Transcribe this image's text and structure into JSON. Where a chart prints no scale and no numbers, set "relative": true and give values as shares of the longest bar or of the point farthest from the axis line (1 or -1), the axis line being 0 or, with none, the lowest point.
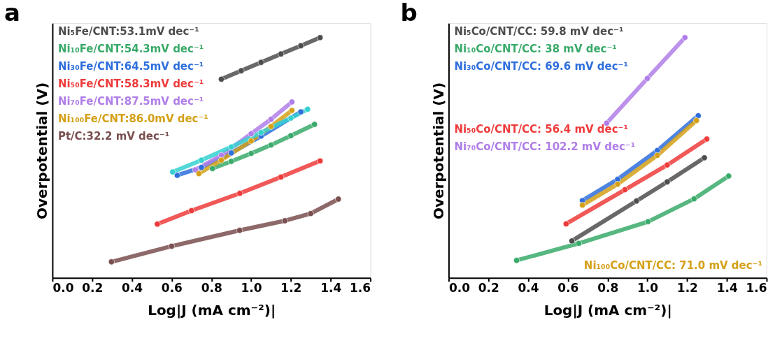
{
  "chart_data": [
    {
      "type": "line",
      "title": "a",
      "marker": "circle",
      "relative": true,
      "legend": "top left",
      "tick_labels": "x",
      "xlabel": "Log|J (mA cm⁻²)|",
      "ylabel": "Overpotential (V)",
      "xlim": [
        0,
        1.6
      ],
      "xticks": [
        {
          "value": 0,
          "label": "0.0"
        },
        {
          "value": 0.2,
          "label": "0.2"
        },
        {
          "value": 0.4,
          "label": "0.4"
        },
        {
          "value": 0.6,
          "label": "0.6"
        },
        {
          "value": 0.8,
          "label": "0.8"
        },
        {
          "value": 1.0,
          "label": "1.0"
        },
        {
          "value": 1.2,
          "label": "1.2"
        },
        {
          "value": 1.4,
          "label": "1.4"
        },
        {
          "value": 1.6,
          "label": "1.6"
        }
      ],
      "series": [
        {
          "name": "Ni₅Fe/CNT:53.1mV dec⁻¹",
          "color": "#4d4d4d",
          "x": [
            0.85,
            0.95,
            1.05,
            1.15,
            1.25,
            1.347
          ],
          "values": [
            0.827,
            0.862,
            0.897,
            0.932,
            0.966,
            1.0
          ]
        },
        {
          "name": "Ni₁₀Fe/CNT:54.3mV dec⁻¹",
          "color": "#3aaa6a",
          "x": [
            0.805,
            0.9,
            1.0,
            1.1,
            1.2,
            1.319
          ],
          "values": [
            0.455,
            0.485,
            0.518,
            0.553,
            0.592,
            0.639
          ]
        },
        {
          "name": "Ni₃₀Fe/CNT:64.5mV dec⁻¹",
          "color": "#2f6fdc",
          "x": [
            0.628,
            0.75,
            0.9,
            1.05,
            1.25
          ],
          "values": [
            0.427,
            0.46,
            0.52,
            0.59,
            0.691
          ]
        },
        {
          "name": "Ni₅₀Fe/CNT:58.3mV dec⁻¹",
          "color": "#ee3b3b",
          "x": [
            0.528,
            0.7,
            0.943,
            1.15,
            1.347
          ],
          "values": [
            0.224,
            0.28,
            0.352,
            0.42,
            0.487
          ]
        },
        {
          "name": "Ni₇₀Fe/CNT:87.5mV dec⁻¹",
          "color": "#b07ee8",
          "x": [
            0.72,
            0.85,
            1.0,
            1.1,
            1.205
          ],
          "values": [
            0.45,
            0.51,
            0.6,
            0.66,
            0.732
          ]
        },
        {
          "name": "Ni₁₀₀Fe/CNT:86.0mV dec⁻¹",
          "color": "#d4a017",
          "x": [
            0.737,
            0.85,
            1.0,
            1.1,
            1.205
          ],
          "values": [
            0.434,
            0.49,
            0.57,
            0.63,
            0.697
          ]
        },
        {
          "name": "Pt/C:32.2 mV dec⁻¹",
          "color": "#7a4f4f",
          "x": [
            0.297,
            0.6,
            0.942,
            1.17,
            1.3,
            1.439
          ],
          "values": [
            0.067,
            0.132,
            0.198,
            0.238,
            0.268,
            0.328
          ]
        },
        {
          "color": "#35d0d0",
          "x": [
            0.605,
            0.75,
            0.9,
            1.05,
            1.2,
            1.284
          ],
          "values": [
            0.441,
            0.49,
            0.545,
            0.605,
            0.665,
            0.702
          ]
        }
      ]
    },
    {
      "type": "line",
      "title": "b",
      "marker": "circle",
      "relative": true,
      "legend": "top left",
      "tick_labels": "x",
      "xlabel": "Log|J (mA cm⁻²)|",
      "ylabel": "Overpotential (V)",
      "xlim": [
        0,
        1.6
      ],
      "xticks": [
        {
          "value": 0,
          "label": "0.0"
        },
        {
          "value": 0.2,
          "label": "0.2"
        },
        {
          "value": 0.4,
          "label": "0.4"
        },
        {
          "value": 0.6,
          "label": "0.6"
        },
        {
          "value": 0.8,
          "label": "0.8"
        },
        {
          "value": 1.0,
          "label": "1.0"
        },
        {
          "value": 1.2,
          "label": "1.2"
        },
        {
          "value": 1.4,
          "label": "1.4"
        },
        {
          "value": 1.6,
          "label": "1.6"
        }
      ],
      "series": [
        {
          "name": "Ni₅Co/CNT/CC: 59.8 mV dec⁻¹",
          "color": "#4d4d4d",
          "x": [
            0.62,
            0.945,
            1.1,
            1.287
          ],
          "values": [
            0.154,
            0.32,
            0.4,
            0.5
          ]
        },
        {
          "name": "Ni₁₀Co/CNT/CC: 38 mV dec⁻¹",
          "color": "#3aaa6a",
          "x": [
            0.342,
            0.655,
            1.003,
            1.235,
            1.409
          ],
          "values": [
            0.073,
            0.144,
            0.234,
            0.329,
            0.424
          ]
        },
        {
          "name": "Ni₃₀Co/CNT/CC: 69.6 mV dec⁻¹",
          "color": "#2f6fdc",
          "x": [
            0.673,
            0.85,
            1.05,
            1.256
          ],
          "values": [
            0.322,
            0.41,
            0.53,
            0.675
          ]
        },
        {
          "name": "Ni₅₀Co/CNT/CC: 56.4 mV dec⁻¹",
          "color": "#ee3b3b",
          "x": [
            0.591,
            0.887,
            1.1,
            1.299
          ],
          "values": [
            0.225,
            0.367,
            0.47,
            0.578
          ]
        },
        {
          "name": "Ni₇₀Co/CNT/CC: 102.2 mV dec⁻¹",
          "color": "#b07ee8",
          "x": [
            0.795,
            1.0,
            1.189
          ],
          "values": [
            0.644,
            0.83,
            1.0
          ]
        },
        {
          "name": "Ni₁₀₀Co/CNT/CC: 71.0 mV dec⁻¹",
          "color": "#d4a017",
          "x": [
            0.673,
            0.85,
            1.05,
            1.247
          ],
          "values": [
            0.303,
            0.39,
            0.51,
            0.655
          ]
        }
      ]
    }
  ]
}
